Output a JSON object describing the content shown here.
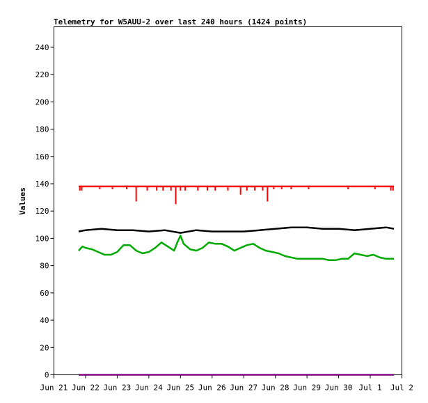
{
  "chart_data": {
    "type": "line",
    "title": "Telemetry for W5AUU-2 over last 240 hours (1424 points)",
    "xlabel": "",
    "ylabel": "Values",
    "ylim": [
      0,
      255
    ],
    "xlim": [
      0,
      11
    ],
    "y_ticks": [
      0,
      20,
      40,
      60,
      80,
      100,
      120,
      140,
      160,
      180,
      200,
      220,
      240
    ],
    "x_ticks": [
      {
        "x": 0,
        "label": "Jun 21"
      },
      {
        "x": 1,
        "label": "Jun 22"
      },
      {
        "x": 2,
        "label": "Jun 23"
      },
      {
        "x": 3,
        "label": "Jun 24"
      },
      {
        "x": 4,
        "label": "Jun 25"
      },
      {
        "x": 5,
        "label": "Jun 26"
      },
      {
        "x": 6,
        "label": "Jun 27"
      },
      {
        "x": 7,
        "label": "Jun 28"
      },
      {
        "x": 8,
        "label": "Jun 29"
      },
      {
        "x": 9,
        "label": "Jun 30"
      },
      {
        "x": 10,
        "label": "Jul 1"
      },
      {
        "x": 11,
        "label": "Jul 2"
      }
    ],
    "grid": false,
    "series": [
      {
        "color": "#ff0000",
        "x": [
          0.78,
          1.0,
          1.5,
          2.0,
          2.5,
          3.0,
          3.5,
          4.0,
          4.5,
          5.0,
          5.5,
          6.0,
          6.5,
          7.0,
          7.5,
          8.0,
          8.5,
          9.0,
          9.5,
          10.0,
          10.5,
          10.75
        ],
        "values": [
          138,
          138,
          138,
          138,
          138,
          138,
          138,
          138,
          138,
          138,
          138,
          138,
          138,
          138,
          138,
          138,
          138,
          138,
          138,
          138,
          138,
          138
        ],
        "dips": [
          {
            "x": 0.82,
            "value": 135
          },
          {
            "x": 0.88,
            "value": 135
          },
          {
            "x": 1.45,
            "value": 136
          },
          {
            "x": 1.85,
            "value": 136
          },
          {
            "x": 2.3,
            "value": 136
          },
          {
            "x": 2.6,
            "value": 127
          },
          {
            "x": 2.95,
            "value": 135
          },
          {
            "x": 3.25,
            "value": 135
          },
          {
            "x": 3.45,
            "value": 135
          },
          {
            "x": 3.7,
            "value": 135
          },
          {
            "x": 3.85,
            "value": 125
          },
          {
            "x": 4.0,
            "value": 135
          },
          {
            "x": 4.15,
            "value": 135
          },
          {
            "x": 4.55,
            "value": 135
          },
          {
            "x": 4.85,
            "value": 135
          },
          {
            "x": 5.1,
            "value": 135
          },
          {
            "x": 5.5,
            "value": 135
          },
          {
            "x": 5.9,
            "value": 132
          },
          {
            "x": 6.1,
            "value": 135
          },
          {
            "x": 6.35,
            "value": 135
          },
          {
            "x": 6.6,
            "value": 135
          },
          {
            "x": 6.75,
            "value": 127
          },
          {
            "x": 6.95,
            "value": 136
          },
          {
            "x": 7.2,
            "value": 136
          },
          {
            "x": 7.5,
            "value": 136
          },
          {
            "x": 8.05,
            "value": 136
          },
          {
            "x": 9.3,
            "value": 136
          },
          {
            "x": 10.15,
            "value": 136
          },
          {
            "x": 10.65,
            "value": 135
          },
          {
            "x": 10.72,
            "value": 135
          }
        ]
      },
      {
        "color": "#000000",
        "x": [
          0.78,
          1.0,
          1.5,
          2.0,
          2.5,
          3.0,
          3.5,
          4.0,
          4.5,
          5.0,
          5.5,
          6.0,
          6.5,
          7.0,
          7.5,
          8.0,
          8.5,
          9.0,
          9.5,
          10.0,
          10.5,
          10.75
        ],
        "values": [
          105,
          106,
          107,
          106,
          106,
          105,
          106,
          104,
          106,
          105,
          105,
          105,
          106,
          107,
          108,
          108,
          107,
          107,
          106,
          107,
          108,
          107
        ]
      },
      {
        "color": "#00aa00",
        "x": [
          0.78,
          0.9,
          1.0,
          1.2,
          1.4,
          1.6,
          1.8,
          2.0,
          2.2,
          2.4,
          2.6,
          2.8,
          3.0,
          3.2,
          3.4,
          3.6,
          3.8,
          3.9,
          4.0,
          4.1,
          4.3,
          4.5,
          4.7,
          4.9,
          5.1,
          5.3,
          5.5,
          5.7,
          5.9,
          6.1,
          6.3,
          6.5,
          6.7,
          6.9,
          7.1,
          7.3,
          7.5,
          7.7,
          7.9,
          8.1,
          8.3,
          8.5,
          8.7,
          8.9,
          9.1,
          9.3,
          9.5,
          9.7,
          9.9,
          10.1,
          10.3,
          10.5,
          10.75
        ],
        "values": [
          91,
          94,
          93,
          92,
          90,
          88,
          88,
          90,
          95,
          95,
          91,
          89,
          90,
          93,
          97,
          94,
          91,
          97,
          102,
          96,
          92,
          91,
          93,
          97,
          96,
          96,
          94,
          91,
          93,
          95,
          96,
          93,
          91,
          90,
          89,
          87,
          86,
          85,
          85,
          85,
          85,
          85,
          84,
          84,
          85,
          85,
          89,
          88,
          87,
          88,
          86,
          85,
          85
        ]
      },
      {
        "color": "#800080",
        "x": [
          0.78,
          10.75
        ],
        "values": [
          0,
          0
        ]
      }
    ]
  }
}
